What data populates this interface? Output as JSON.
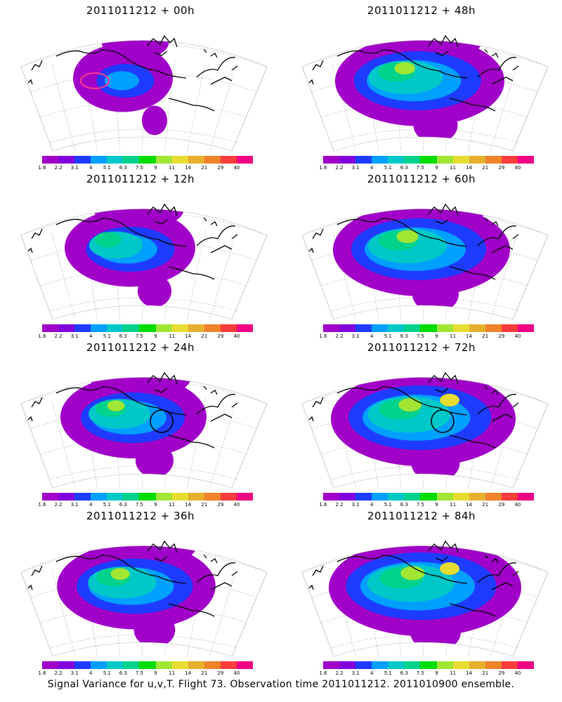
{
  "panels": [
    {
      "title": "2011011212 + 00h",
      "intensity": 0.1,
      "circle": "magenta-ellipse"
    },
    {
      "title": "2011011212 + 48h",
      "intensity": 0.55,
      "circle": ""
    },
    {
      "title": "2011011212 + 12h",
      "intensity": 0.3,
      "circle": ""
    },
    {
      "title": "2011011212 + 60h",
      "intensity": 0.6,
      "circle": ""
    },
    {
      "title": "2011011212 + 24h",
      "intensity": 0.4,
      "circle": "black-circle"
    },
    {
      "title": "2011011212 + 72h",
      "intensity": 0.65,
      "circle": "black-circle"
    },
    {
      "title": "2011011212 + 36h",
      "intensity": 0.48,
      "circle": ""
    },
    {
      "title": "2011011212 + 84h",
      "intensity": 0.7,
      "circle": ""
    }
  ],
  "colorbar": {
    "colors": [
      "#a000c8",
      "#8200dc",
      "#1e3cff",
      "#00a0ff",
      "#00c8c8",
      "#00d28c",
      "#00dc00",
      "#a0e632",
      "#e6dc32",
      "#e6af2d",
      "#f08228",
      "#fa3c3c",
      "#f00082"
    ],
    "labels": [
      "1.6",
      "2.2",
      "3.1",
      "4",
      "5.1",
      "6.3",
      "7.5",
      "9",
      "11",
      "14",
      "21",
      "29",
      "40"
    ]
  },
  "footer": "Signal Variance for u,v,T. Flight 73. Observation time 2011011212. 2011010900 ensemble."
}
